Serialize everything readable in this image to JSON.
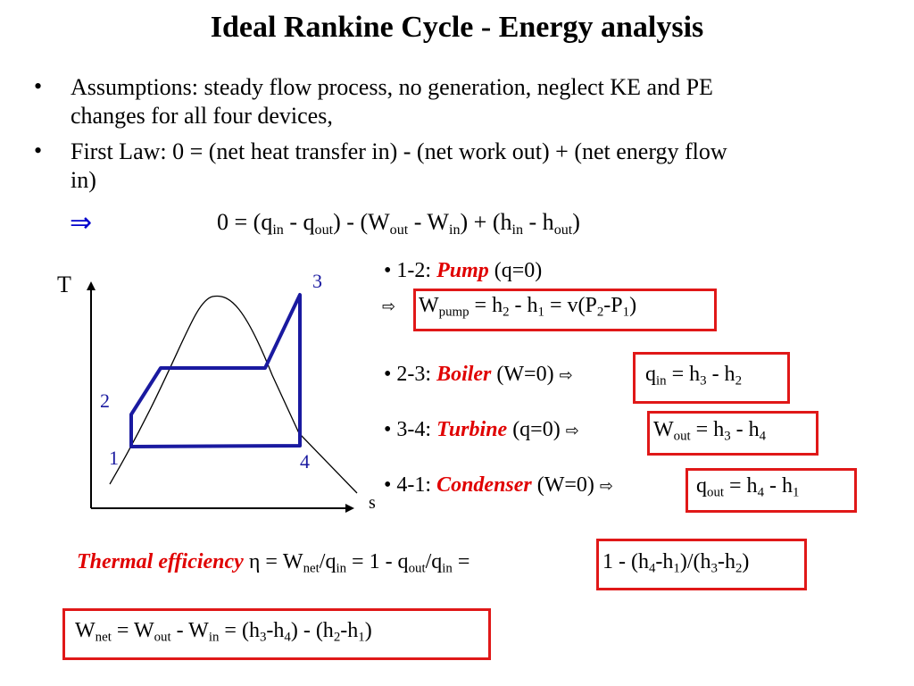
{
  "title": "Ideal Rankine Cycle - Energy analysis",
  "bullets": [
    {
      "mark": "•",
      "line1": "Assumptions: steady flow process, no generation, neglect KE and PE",
      "line2": "changes for all four devices,"
    },
    {
      "mark": "•",
      "line1": "First Law: 0 = (net heat transfer in) - (net work out) + (net energy flow",
      "line2": "in)"
    }
  ],
  "implies_symbol": "⇒",
  "energy_equation": "0 = (q_in - q_out) - (W_out - W_in) + (h_in - h_out)",
  "diagram": {
    "axis_t": "T",
    "axis_s": "s",
    "points": [
      "1",
      "2",
      "3",
      "4"
    ]
  },
  "processes": {
    "pump": {
      "prefix": "• 1-2:",
      "name": "Pump",
      "condition": "(q=0)",
      "arrow": "⇨",
      "equation": "W_pump = h_2 - h_1 = v(P_2-P_1)"
    },
    "boiler": {
      "prefix": "• 2-3:",
      "name": "Boiler",
      "condition": "(W=0)",
      "arrow": "⇨",
      "equation": "q_in = h_3 - h_2"
    },
    "turbine": {
      "prefix": "• 3-4:",
      "name": "Turbine",
      "condition": "(q=0)",
      "arrow": "⇨",
      "equation": "W_out = h_3 - h_4"
    },
    "condenser": {
      "prefix": "• 4-1:",
      "name": "Condenser",
      "condition": "(W=0)",
      "arrow": "⇨",
      "equation": "q_out = h_4 - h_1"
    }
  },
  "efficiency": {
    "label": "Thermal efficiency",
    "lhs": "η = W_net/q_in = 1 - q_out/q_in =",
    "rhs": "1 - (h_4-h_1)/(h_3-h_2)"
  },
  "net_work": "W_net = W_out - W_in = (h_3-h_4) - (h_2-h_1)",
  "colors": {
    "accent_red": "#e00000",
    "box_red": "#e01818",
    "cycle_blue": "#1a1aa0",
    "arrow_blue": "#0000cc"
  }
}
